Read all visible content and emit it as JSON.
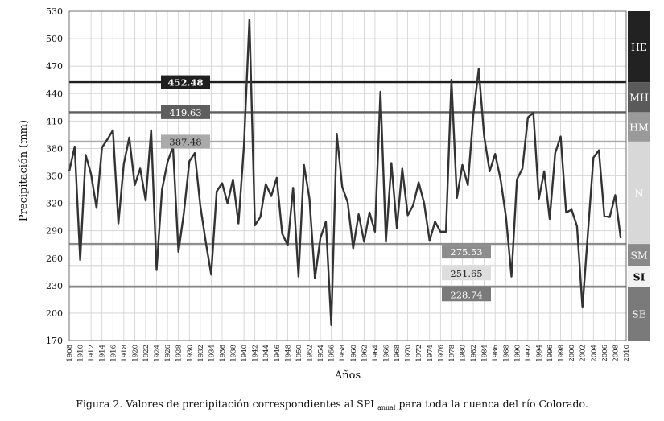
{
  "chart_data": {
    "type": "line",
    "ylabel": "Precipitación (mm)",
    "xlabel": "Años",
    "ylim": [
      170,
      530
    ],
    "yticks": [
      170,
      200,
      230,
      260,
      290,
      320,
      350,
      380,
      410,
      440,
      470,
      500,
      530
    ],
    "xticks": [
      "1908",
      "1910",
      "1912",
      "1914",
      "1916",
      "1918",
      "1920",
      "1922",
      "1924",
      "1926",
      "1928",
      "1930",
      "1932",
      "1934",
      "1936",
      "1938",
      "1940",
      "1942",
      "1944",
      "1946",
      "1948",
      "1950",
      "1952",
      "1954",
      "1956",
      "1958",
      "1960",
      "1962",
      "1964",
      "1966",
      "1968",
      "1970",
      "1972",
      "1974",
      "1976",
      "1978",
      "1980",
      "1982",
      "1984",
      "1986",
      "1988",
      "1990",
      "1992",
      "1994",
      "1996",
      "1998",
      "2000",
      "2002",
      "2004",
      "2006",
      "2008",
      "2010"
    ],
    "grid": true,
    "series": [
      {
        "x": [
          1908,
          1909,
          1910,
          1911,
          1912,
          1913,
          1914,
          1915,
          1916,
          1917,
          1918,
          1919,
          1920,
          1921,
          1922,
          1923,
          1924,
          1925,
          1926,
          1927,
          1928,
          1929,
          1930,
          1931,
          1932,
          1933,
          1934,
          1935,
          1936,
          1937,
          1938,
          1939,
          1940,
          1941,
          1942,
          1943,
          1944,
          1945,
          1946,
          1947,
          1948,
          1949,
          1950,
          1951,
          1952,
          1953,
          1954,
          1955,
          1956,
          1957,
          1958,
          1959,
          1960,
          1961,
          1962,
          1963,
          1964,
          1965,
          1966,
          1967,
          1968,
          1969,
          1970,
          1971,
          1972,
          1973,
          1974,
          1975,
          1976,
          1977,
          1978,
          1979,
          1980,
          1981,
          1982,
          1983,
          1984,
          1985,
          1986,
          1987,
          1988,
          1989,
          1990,
          1991,
          1992,
          1993,
          1994,
          1995,
          1996,
          1997,
          1998,
          1999,
          2000,
          2001,
          2002,
          2003,
          2004,
          2005,
          2006,
          2007,
          2008,
          2009
        ],
        "values": [
          355,
          382,
          258,
          373,
          352,
          315,
          381,
          390,
          400,
          298,
          363,
          392,
          340,
          358,
          323,
          400,
          247,
          335,
          365,
          382,
          267,
          310,
          366,
          375,
          318,
          278,
          242,
          333,
          342,
          320,
          346,
          298,
          383,
          521,
          296,
          305,
          341,
          328,
          348,
          287,
          274,
          337,
          240,
          362,
          325,
          238,
          282,
          300,
          187,
          396,
          338,
          321,
          271,
          308,
          278,
          310,
          289,
          442,
          278,
          364,
          293,
          358,
          307,
          318,
          343,
          320,
          279,
          300,
          289,
          289,
          455,
          326,
          362,
          340,
          416,
          467,
          393,
          355,
          374,
          346,
          305,
          240,
          346,
          358,
          414,
          419,
          325,
          355,
          303,
          375,
          393,
          310,
          313,
          295,
          206,
          288,
          370,
          378,
          306,
          305,
          329,
          282
        ]
      }
    ],
    "thresholds": [
      {
        "value": 452.48,
        "label": "452.48",
        "color": "#1f1f1f",
        "text_color": "#ffffff"
      },
      {
        "value": 419.63,
        "label": "419.63",
        "color": "#5e5e5e",
        "text_color": "#ffffff"
      },
      {
        "value": 387.48,
        "label": "387.48",
        "color": "#aaaaaa",
        "text_color": "#222222"
      },
      {
        "value": 275.53,
        "label": "275.53",
        "color": "#8d8d8d",
        "text_color": "#ffffff"
      },
      {
        "value": 251.65,
        "label": "251.65",
        "color": "#dddddd",
        "text_color": "#222222"
      },
      {
        "value": 228.74,
        "label": "228.74",
        "color": "#7a7a7a",
        "text_color": "#ffffff"
      }
    ],
    "categories_band": [
      {
        "label": "HE",
        "from": 452.48,
        "to": 530,
        "color": "#222222",
        "text_color": "#ffffff"
      },
      {
        "label": "MH",
        "from": 419.63,
        "to": 452.48,
        "color": "#5a5a5a",
        "text_color": "#ffffff"
      },
      {
        "label": "HM",
        "from": 387.48,
        "to": 419.63,
        "color": "#9a9a9a",
        "text_color": "#ffffff"
      },
      {
        "label": "N",
        "from": 275.53,
        "to": 387.48,
        "color": "#d8d8d8",
        "text_color": "#ffffff"
      },
      {
        "label": "SM",
        "from": 251.65,
        "to": 275.53,
        "color": "#8a8a8a",
        "text_color": "#ffffff"
      },
      {
        "label": "SI",
        "from": 228.74,
        "to": 251.65,
        "color": "#f2f2f2",
        "text_color": "#111111"
      },
      {
        "label": "SE",
        "from": 170,
        "to": 228.74,
        "color": "#7a7a7a",
        "text_color": "#ffffff"
      }
    ]
  },
  "caption": {
    "prefix": "Figura 2. Valores de precipitación correspondientes al SPI",
    "subscript": "anual",
    "suffix": " para toda la cuenca del río Colorado."
  }
}
